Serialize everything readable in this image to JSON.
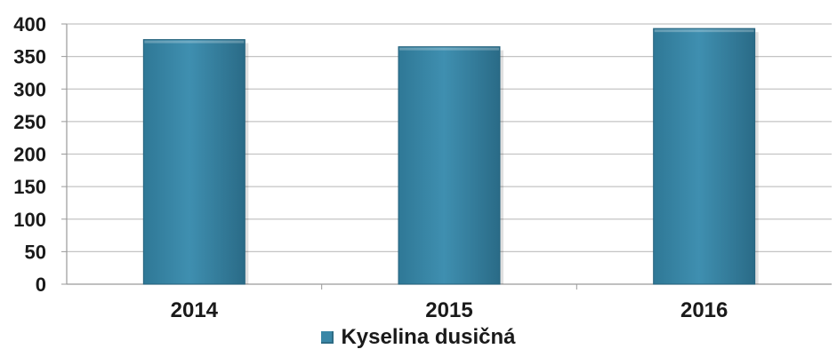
{
  "chart_data": {
    "type": "bar",
    "categories": [
      "2014",
      "2015",
      "2016"
    ],
    "series": [
      {
        "name": "Kyselina dusičná",
        "values": [
          376,
          365,
          393
        ]
      }
    ],
    "title": "",
    "xlabel": "",
    "ylabel": "",
    "ylim": [
      0,
      400
    ],
    "yticks": [
      0,
      50,
      100,
      150,
      200,
      250,
      300,
      350,
      400
    ],
    "grid": true,
    "legend_position": "bottom",
    "bar_color": "#3a87a7"
  },
  "legend": {
    "label": "Kyselina dusičná"
  }
}
